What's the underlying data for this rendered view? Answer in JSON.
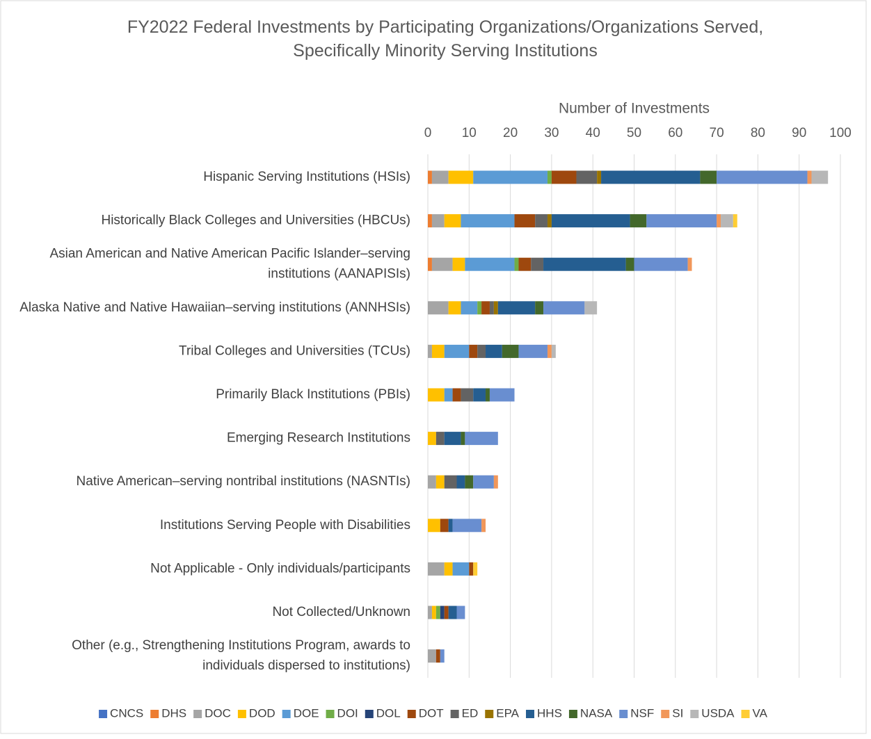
{
  "chart_data": {
    "type": "stacked-bar-horizontal",
    "title": "FY2022 Federal Investments by Participating Organizations/Organizations Served, Specifically Minority Serving Institutions",
    "x_label": "Number of Investments",
    "categories": [
      "Hispanic Serving Institutions (HSIs)",
      "Historically Black Colleges and Universities (HBCUs)",
      "Asian American and Native American Pacific Islander–serving institutions (AANAPISIs)",
      "Alaska Native and Native Hawaiian–serving institutions (ANNHSIs)",
      "Tribal Colleges and Universities (TCUs)",
      "Primarily Black Institutions (PBIs)",
      "Emerging Research Institutions",
      "Native American–serving nontribal institutions (NASNTIs)",
      "Institutions Serving People with Disabilities",
      "Not Applicable - Only individuals/participants",
      "Not Collected/Unknown",
      "Other (e.g., Strengthening Institutions Program, awards to individuals dispersed to institutions)"
    ],
    "series": [
      {
        "name": "CNCS",
        "color": "#4472c4",
        "values": [
          0,
          0,
          0,
          0,
          0,
          0,
          0,
          0,
          0,
          0,
          0,
          0
        ]
      },
      {
        "name": "DHS",
        "color": "#ed7d31",
        "values": [
          1,
          1,
          1,
          0,
          0,
          0,
          0,
          0,
          0,
          0,
          0,
          0
        ]
      },
      {
        "name": "DOC",
        "color": "#a5a5a5",
        "values": [
          4,
          3,
          5,
          5,
          1,
          0,
          0,
          2,
          0,
          4,
          1,
          2
        ]
      },
      {
        "name": "DOD",
        "color": "#ffc000",
        "values": [
          6,
          4,
          3,
          3,
          3,
          4,
          2,
          2,
          3,
          2,
          1,
          0
        ]
      },
      {
        "name": "DOE",
        "color": "#5b9bd5",
        "values": [
          18,
          13,
          12,
          4,
          6,
          2,
          0,
          0,
          0,
          4,
          0,
          0
        ]
      },
      {
        "name": "DOI",
        "color": "#70ad47",
        "values": [
          1,
          0,
          1,
          1,
          0,
          0,
          0,
          0,
          0,
          0,
          1,
          0
        ]
      },
      {
        "name": "DOL",
        "color": "#264478",
        "values": [
          0,
          0,
          0,
          0,
          0,
          0,
          0,
          0,
          0,
          0,
          1,
          0
        ]
      },
      {
        "name": "DOT",
        "color": "#9e480e",
        "values": [
          6,
          5,
          3,
          2,
          2,
          2,
          0,
          0,
          2,
          1,
          1,
          1
        ]
      },
      {
        "name": "ED",
        "color": "#636363",
        "values": [
          5,
          3,
          3,
          1,
          2,
          3,
          2,
          3,
          0,
          0,
          0,
          0
        ]
      },
      {
        "name": "EPA",
        "color": "#997300",
        "values": [
          1,
          1,
          0,
          1,
          0,
          0,
          0,
          0,
          0,
          0,
          0,
          0
        ]
      },
      {
        "name": "HHS",
        "color": "#255e91",
        "values": [
          24,
          19,
          20,
          9,
          4,
          3,
          4,
          2,
          1,
          0,
          2,
          0
        ]
      },
      {
        "name": "NASA",
        "color": "#43682b",
        "values": [
          4,
          4,
          2,
          2,
          4,
          1,
          1,
          2,
          0,
          0,
          0,
          0
        ]
      },
      {
        "name": "NSF",
        "color": "#698ed0",
        "values": [
          22,
          17,
          13,
          10,
          7,
          6,
          8,
          5,
          7,
          0,
          2,
          1
        ]
      },
      {
        "name": "SI",
        "color": "#f1975a",
        "values": [
          1,
          1,
          1,
          0,
          1,
          0,
          0,
          1,
          1,
          0,
          0,
          0
        ]
      },
      {
        "name": "USDA",
        "color": "#b7b7b7",
        "values": [
          4,
          3,
          0,
          3,
          1,
          0,
          0,
          0,
          0,
          0,
          0,
          0
        ]
      },
      {
        "name": "VA",
        "color": "#ffcd33",
        "values": [
          0,
          1,
          0,
          0,
          0,
          0,
          0,
          0,
          0,
          1,
          0,
          0
        ]
      }
    ],
    "xlim": [
      0,
      100
    ],
    "xticks": [
      0,
      10,
      20,
      30,
      40,
      50,
      60,
      70,
      80,
      90,
      100
    ],
    "grid": true,
    "legend": "bottom"
  }
}
